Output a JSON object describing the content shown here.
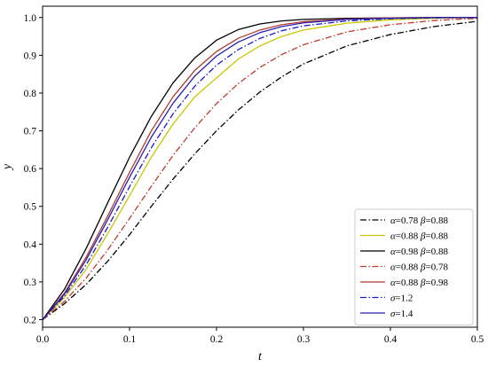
{
  "chart_data": {
    "type": "line",
    "xlabel": "t",
    "ylabel": "y",
    "xlim": [
      0.0,
      0.5
    ],
    "ylim": [
      0.18,
      1.03
    ],
    "xticks": [
      "0.0",
      "0.1",
      "0.2",
      "0.3",
      "0.4",
      "0.5"
    ],
    "yticks": [
      "0.2",
      "0.3",
      "0.4",
      "0.5",
      "0.6",
      "0.7",
      "0.8",
      "0.9",
      "1.0"
    ],
    "grid": false,
    "legend_position": "lower-right",
    "series": [
      {
        "name": "α=0.78 β=0.88",
        "legend": {
          "a": "α",
          "av": "=0.78 ",
          "b": "β",
          "bv": "=0.88"
        },
        "color": "#000000",
        "style": "dashdot",
        "x": [
          0,
          0.025,
          0.05,
          0.075,
          0.1,
          0.125,
          0.15,
          0.175,
          0.2,
          0.225,
          0.25,
          0.275,
          0.3,
          0.35,
          0.4,
          0.45,
          0.5
        ],
        "y": [
          0.2,
          0.242,
          0.293,
          0.355,
          0.425,
          0.5,
          0.572,
          0.639,
          0.7,
          0.755,
          0.803,
          0.843,
          0.877,
          0.925,
          0.955,
          0.976,
          0.99
        ]
      },
      {
        "name": "α=0.88 β=0.88",
        "legend": {
          "a": "α",
          "av": "=0.88 ",
          "b": "β",
          "bv": "=0.88"
        },
        "color": "#c8c800",
        "style": "solid",
        "x": [
          0,
          0.025,
          0.05,
          0.075,
          0.1,
          0.125,
          0.15,
          0.175,
          0.2,
          0.225,
          0.25,
          0.275,
          0.3,
          0.35,
          0.4,
          0.45,
          0.5
        ],
        "y": [
          0.2,
          0.258,
          0.333,
          0.428,
          0.528,
          0.63,
          0.718,
          0.79,
          0.84,
          0.89,
          0.925,
          0.95,
          0.967,
          0.985,
          0.994,
          0.998,
          1.0
        ]
      },
      {
        "name": "α=0.98 β=0.88",
        "legend": {
          "a": "α",
          "av": "=0.98 ",
          "b": "β",
          "bv": "=0.88"
        },
        "color": "#000000",
        "style": "solid",
        "x": [
          0,
          0.025,
          0.05,
          0.075,
          0.1,
          0.125,
          0.15,
          0.175,
          0.2,
          0.225,
          0.25,
          0.275,
          0.3,
          0.35,
          0.4,
          0.45,
          0.5
        ],
        "y": [
          0.2,
          0.28,
          0.388,
          0.51,
          0.63,
          0.738,
          0.827,
          0.893,
          0.94,
          0.968,
          0.983,
          0.991,
          0.995,
          0.998,
          0.999,
          1.0,
          1.0
        ]
      },
      {
        "name": "α=0.88 β=0.78",
        "legend": {
          "a": "α",
          "av": "=0.88 ",
          "b": "β",
          "bv": "=0.78"
        },
        "color": "#c0392b",
        "style": "dashdot",
        "x": [
          0,
          0.025,
          0.05,
          0.075,
          0.1,
          0.125,
          0.15,
          0.175,
          0.2,
          0.225,
          0.25,
          0.275,
          0.3,
          0.35,
          0.4,
          0.45,
          0.5
        ],
        "y": [
          0.2,
          0.248,
          0.31,
          0.385,
          0.468,
          0.553,
          0.635,
          0.708,
          0.772,
          0.825,
          0.868,
          0.902,
          0.928,
          0.962,
          0.981,
          0.992,
          0.998
        ]
      },
      {
        "name": "α=0.88 β=0.98",
        "legend": {
          "a": "α",
          "av": "=0.88 ",
          "b": "β",
          "bv": "=0.98"
        },
        "color": "#b03a2e",
        "style": "solid",
        "x": [
          0,
          0.025,
          0.05,
          0.075,
          0.1,
          0.125,
          0.15,
          0.175,
          0.2,
          0.225,
          0.25,
          0.275,
          0.3,
          0.35,
          0.4,
          0.45,
          0.5
        ],
        "y": [
          0.2,
          0.27,
          0.365,
          0.475,
          0.59,
          0.7,
          0.79,
          0.86,
          0.91,
          0.945,
          0.967,
          0.981,
          0.989,
          0.996,
          0.999,
          1.0,
          1.0
        ]
      },
      {
        "name": "σ=1.2",
        "legend": {
          "a": "σ",
          "av": "=1.2",
          "b": "",
          "bv": ""
        },
        "color": "#1a1acc",
        "style": "dashdot",
        "x": [
          0,
          0.025,
          0.05,
          0.075,
          0.1,
          0.125,
          0.15,
          0.175,
          0.2,
          0.225,
          0.25,
          0.275,
          0.3,
          0.35,
          0.4,
          0.45,
          0.5
        ],
        "y": [
          0.2,
          0.262,
          0.345,
          0.445,
          0.552,
          0.655,
          0.745,
          0.818,
          0.874,
          0.915,
          0.945,
          0.965,
          0.978,
          0.991,
          0.997,
          0.999,
          1.0
        ]
      },
      {
        "name": "σ=1.4",
        "legend": {
          "a": "σ",
          "av": "=1.4",
          "b": "",
          "bv": ""
        },
        "color": "#2a1fb0",
        "style": "solid",
        "x": [
          0,
          0.025,
          0.05,
          0.075,
          0.1,
          0.125,
          0.15,
          0.175,
          0.2,
          0.225,
          0.25,
          0.275,
          0.3,
          0.35,
          0.4,
          0.45,
          0.5
        ],
        "y": [
          0.2,
          0.267,
          0.358,
          0.465,
          0.577,
          0.683,
          0.773,
          0.845,
          0.898,
          0.935,
          0.96,
          0.976,
          0.986,
          0.995,
          0.998,
          1.0,
          1.0
        ]
      }
    ]
  }
}
